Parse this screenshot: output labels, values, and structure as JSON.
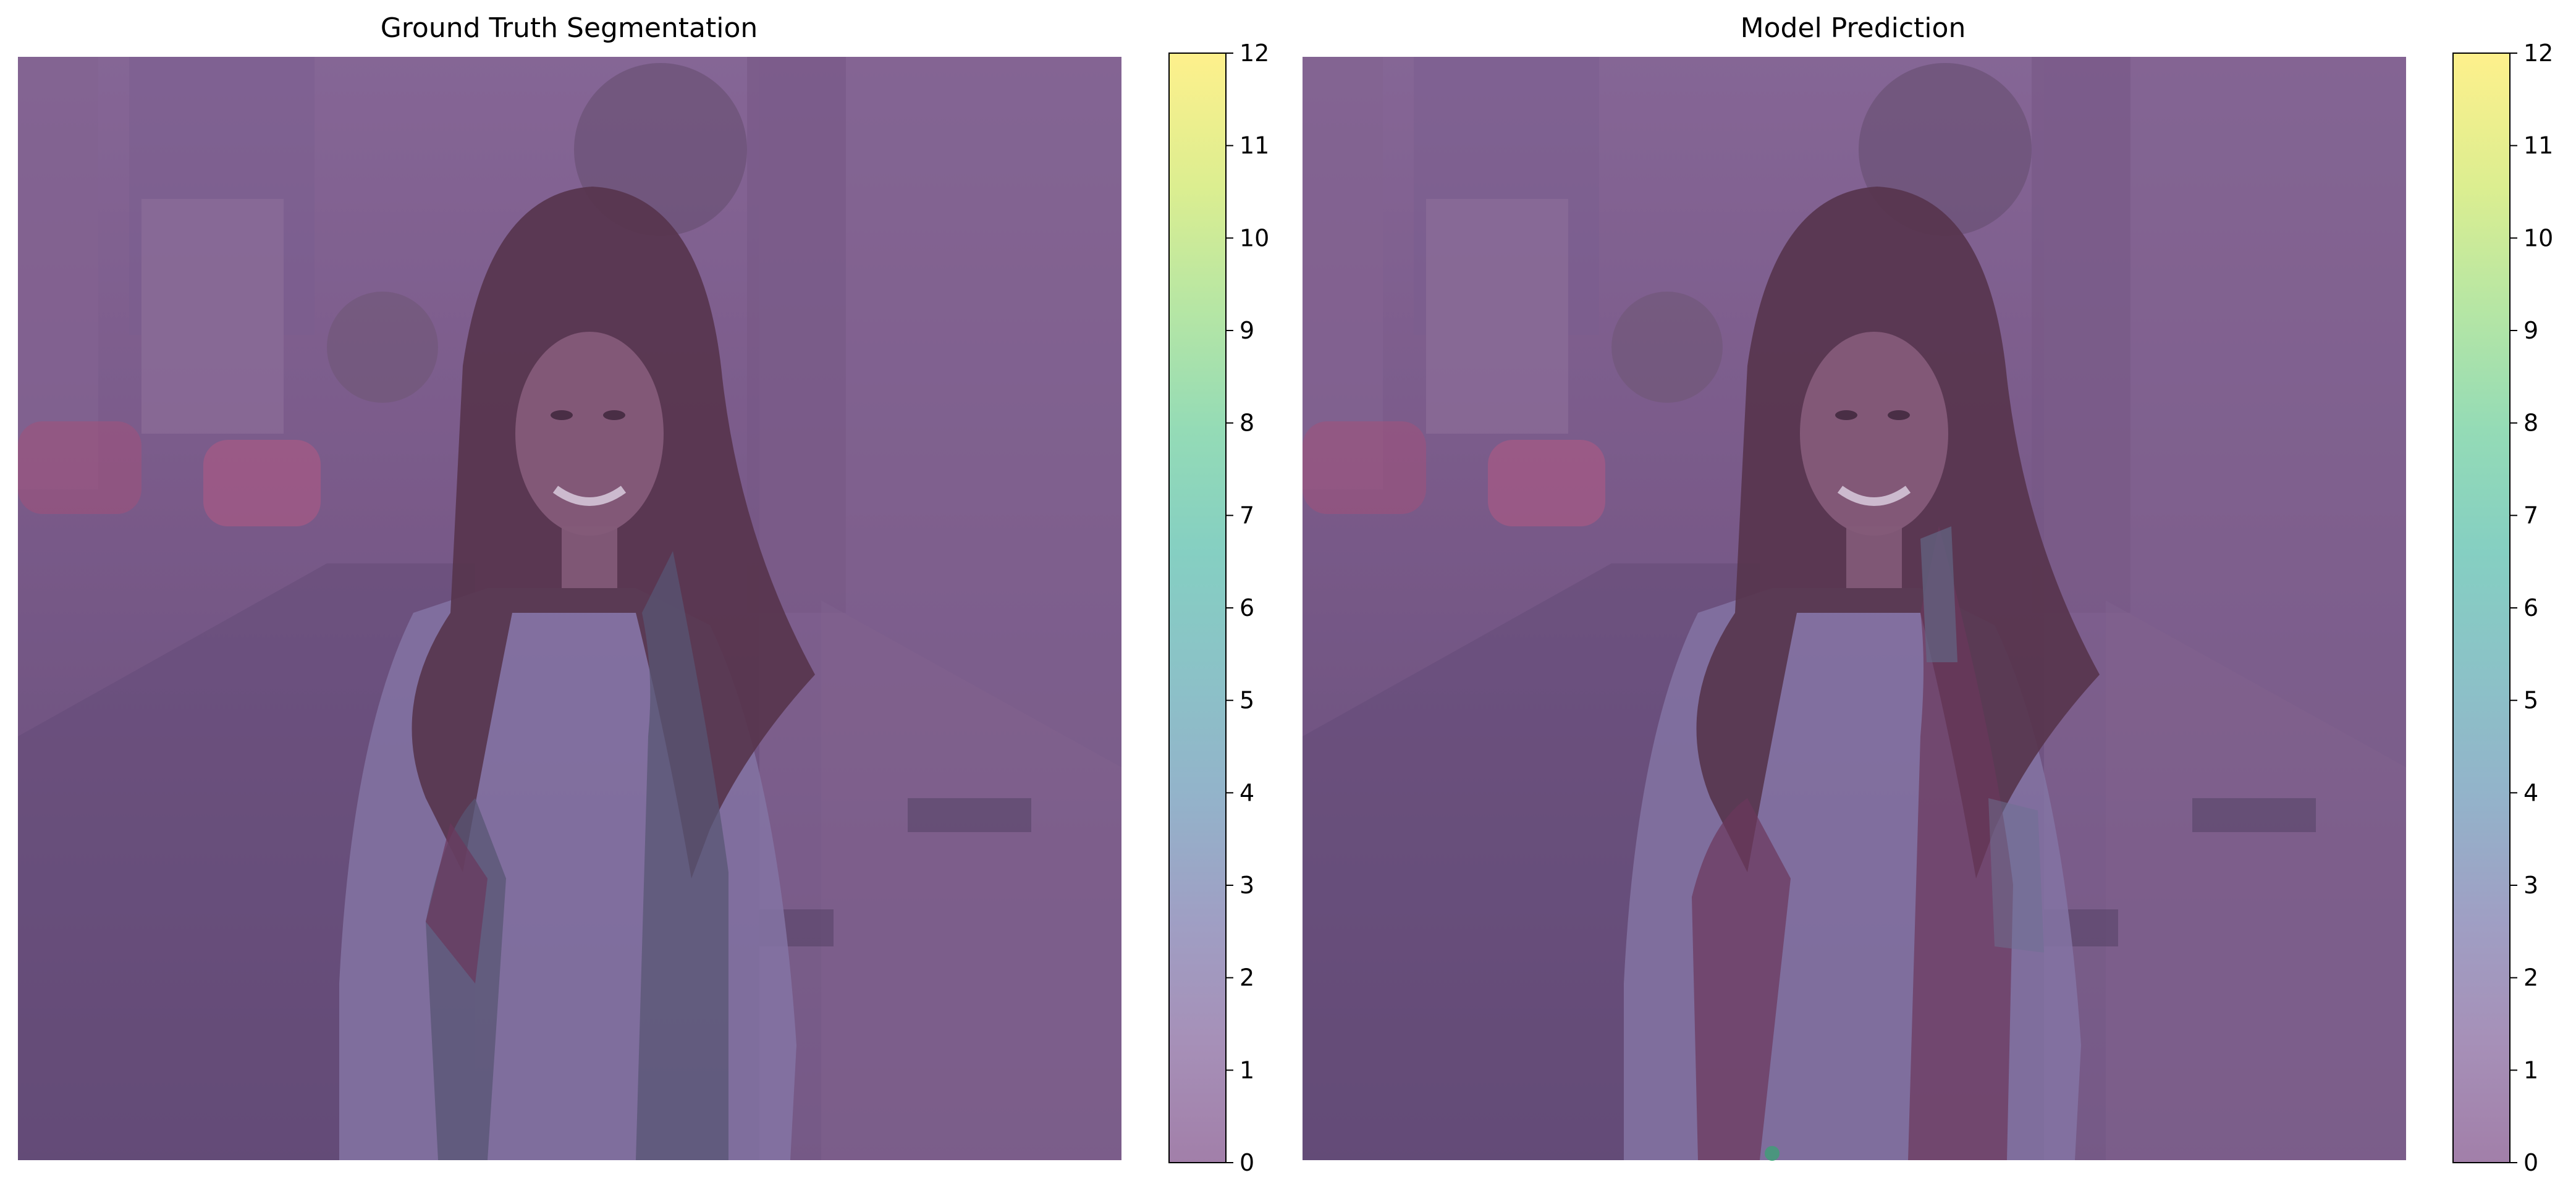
{
  "panels": [
    {
      "title": "Ground Truth Segmentation",
      "colorbar_ticks": [
        "0",
        "1",
        "2",
        "3",
        "4",
        "5",
        "6",
        "7",
        "8",
        "9",
        "10",
        "11",
        "12"
      ]
    },
    {
      "title": "Model Prediction",
      "colorbar_ticks": [
        "0",
        "1",
        "2",
        "3",
        "4",
        "5",
        "6",
        "7",
        "8",
        "9",
        "10",
        "11",
        "12"
      ]
    }
  ],
  "colormap": {
    "name": "viridis",
    "alpha": 0.5,
    "stops": [
      "#440154",
      "#482878",
      "#3e4989",
      "#31688e",
      "#26828e",
      "#1f9e89",
      "#35b779",
      "#6ece58",
      "#b5de2b",
      "#fde725"
    ]
  },
  "overlay_colors": {
    "background_class": "#6f4f7e",
    "vest_gt": "#4f5870",
    "vest_pred": "#6a2f4f",
    "hair": "#4e2a3a",
    "shirt": "#8c82b3"
  }
}
